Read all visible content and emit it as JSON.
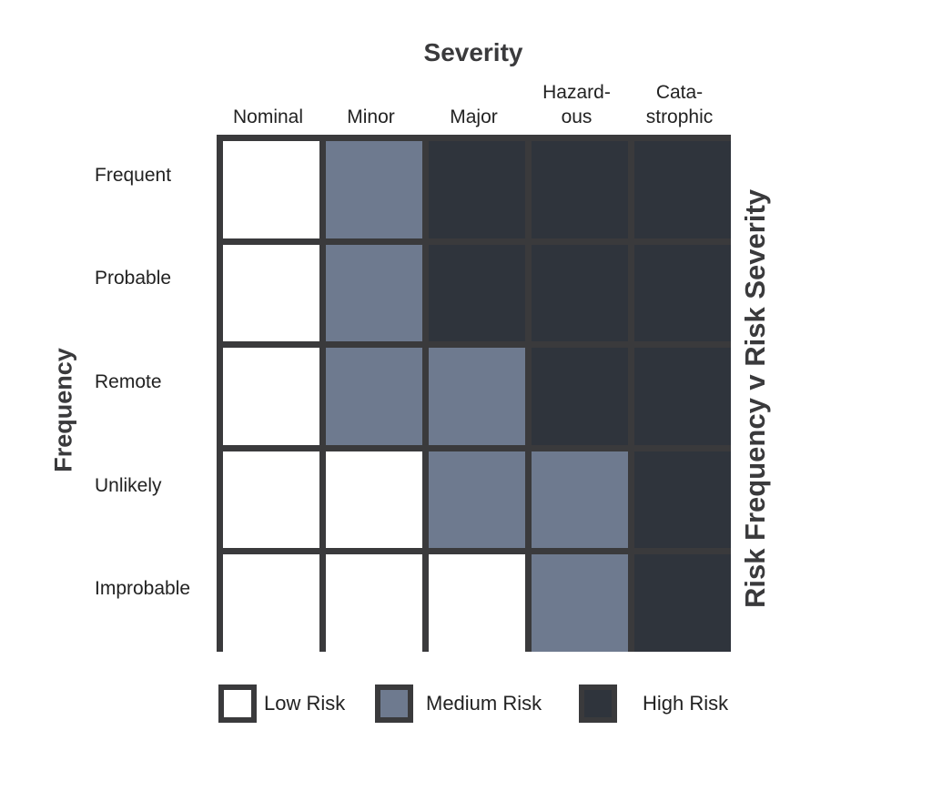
{
  "title": "Risk Frequency v Risk Severity",
  "severity_label": "Severity",
  "frequency_label": "Frequency",
  "columns": [
    [
      "Nominal"
    ],
    [
      "Minor"
    ],
    [
      "Major"
    ],
    [
      "Hazard-",
      "ous"
    ],
    [
      "Cata-",
      "strophic"
    ]
  ],
  "rows": [
    "Frequent",
    "Probable",
    "Remote",
    "Unlikely",
    "Improbable"
  ],
  "matrix": [
    [
      "low",
      "medium",
      "high",
      "high",
      "high"
    ],
    [
      "low",
      "medium",
      "high",
      "high",
      "high"
    ],
    [
      "low",
      "medium",
      "medium",
      "high",
      "high"
    ],
    [
      "low",
      "low",
      "medium",
      "medium",
      "high"
    ],
    [
      "low",
      "low",
      "low",
      "medium",
      "high"
    ]
  ],
  "colors": {
    "low": "#ffffff",
    "medium": "#6e7a8f",
    "high": "#2f343c",
    "border": "#3a3a3c"
  },
  "legend": [
    {
      "level": "low",
      "label": "Low Risk"
    },
    {
      "level": "medium",
      "label": "Medium Risk"
    },
    {
      "level": "high",
      "label": "High Risk"
    }
  ]
}
